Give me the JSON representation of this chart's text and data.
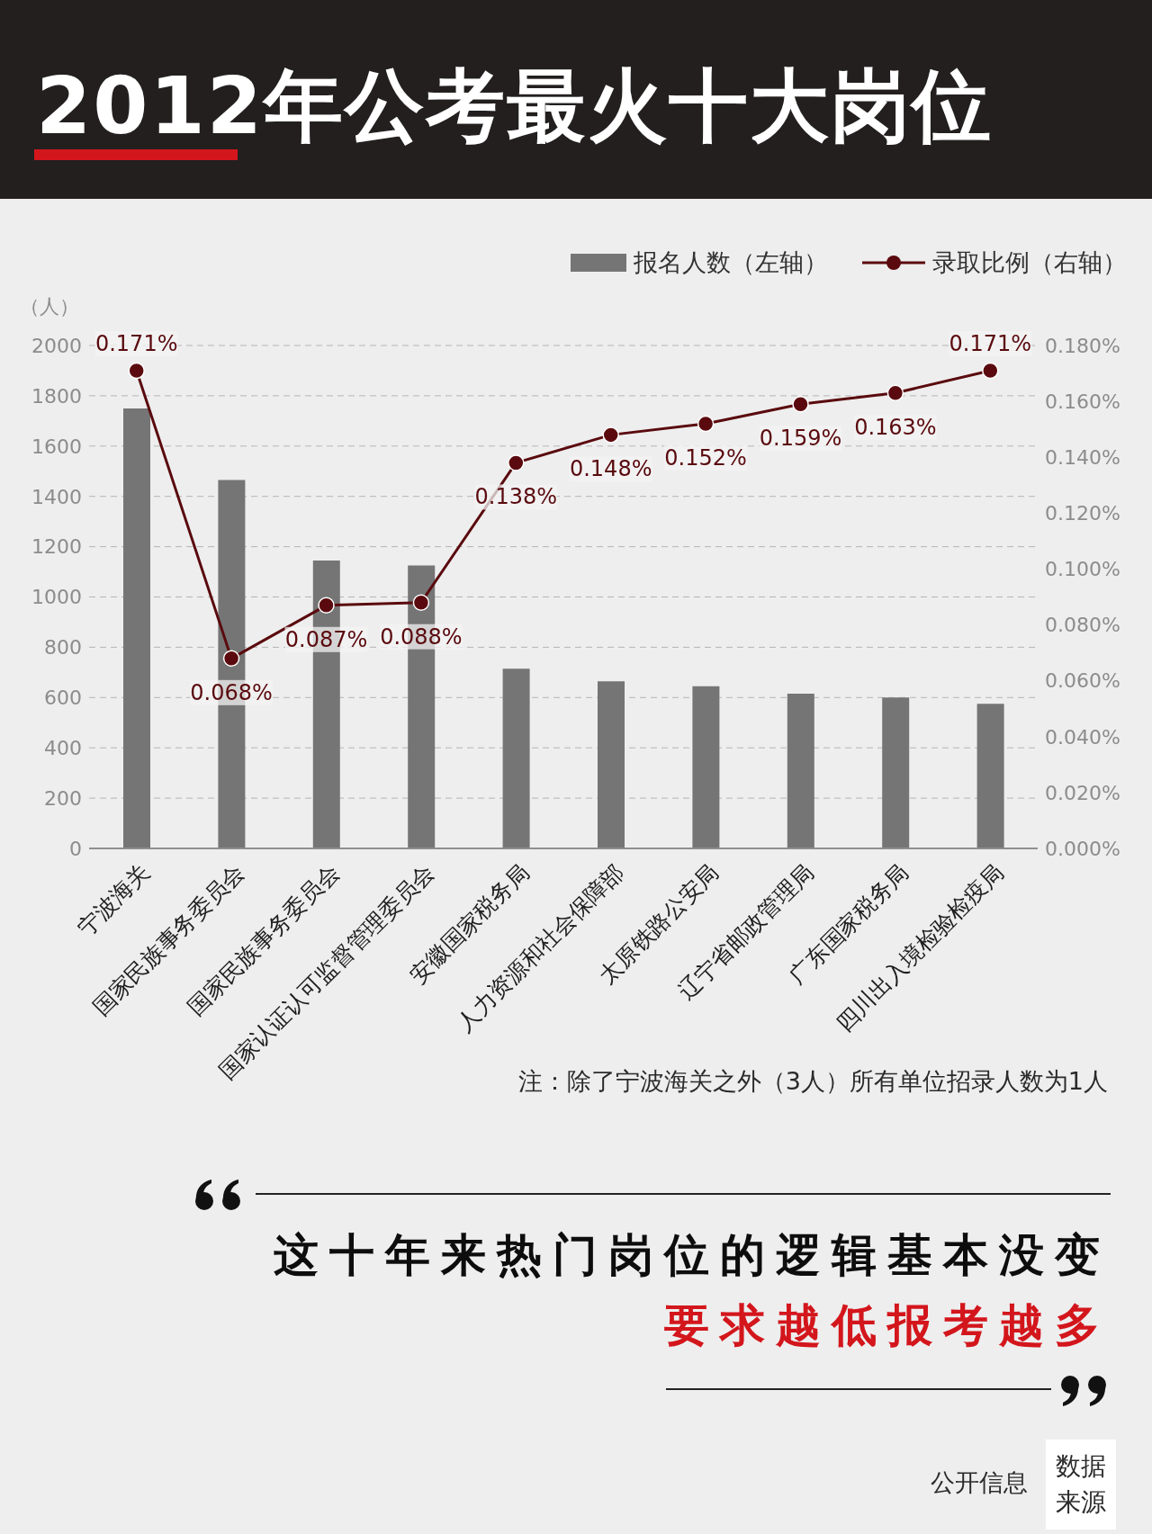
{
  "chart_data": {
    "type": "bar",
    "title": "2012年公考最火十大岗位",
    "ylabel": "（人）",
    "categories": [
      "宁波海关",
      "国家民族事务委员会",
      "国家民族事务委员会",
      "国家认证认可监督管理委员会",
      "安徽国家税务局",
      "人力资源和社会保障部",
      "太原铁路公安局",
      "辽宁省邮政管理局",
      "广东国家税务局",
      "四川出入境检验检疫局"
    ],
    "series": [
      {
        "name": "报名人数（左轴）",
        "color": "#757575",
        "values": [
          1750,
          1465,
          1145,
          1125,
          715,
          665,
          645,
          615,
          600,
          575
        ]
      },
      {
        "name": "录取比例（右轴）",
        "type": "line",
        "axis": "y2",
        "color": "#5a0a0e",
        "values": [
          0.171,
          0.068,
          0.087,
          0.088,
          0.138,
          0.148,
          0.152,
          0.159,
          0.163,
          0.171
        ],
        "value_labels": [
          "0.171%",
          "0.068%",
          "0.087%",
          "0.088%",
          "0.138%",
          "0.148%",
          "0.152%",
          "0.159%",
          "0.163%",
          "0.171%"
        ]
      }
    ],
    "ylim": [
      0,
      2000
    ],
    "yticks": [
      0,
      200,
      400,
      600,
      800,
      1000,
      1200,
      1400,
      1600,
      1800,
      2000
    ],
    "y2lim": [
      0,
      0.18
    ],
    "y2ticks": [
      {
        "value": 0,
        "label": "0.000%"
      },
      {
        "value": 0.02,
        "label": "0.020%"
      },
      {
        "value": 0.04,
        "label": "0.040%"
      },
      {
        "value": 0.06,
        "label": "0.060%"
      },
      {
        "value": 0.08,
        "label": "0.080%"
      },
      {
        "value": 0.1,
        "label": "0.100%"
      },
      {
        "value": 0.12,
        "label": "0.120%"
      },
      {
        "value": 0.14,
        "label": "0.140%"
      },
      {
        "value": 0.16,
        "label": "0.160%"
      },
      {
        "value": 0.18,
        "label": "0.180%"
      }
    ],
    "grid": "y",
    "legend": "top right",
    "marker": "circle",
    "line_style": "solid",
    "annotations": [
      "注：除了宁波海关之外（3人）所有单位招录人数为1人",
      "这十年来热门岗位的逻辑基本没变",
      "要求越低报考越多",
      "数据来源",
      "公开信息"
    ]
  }
}
